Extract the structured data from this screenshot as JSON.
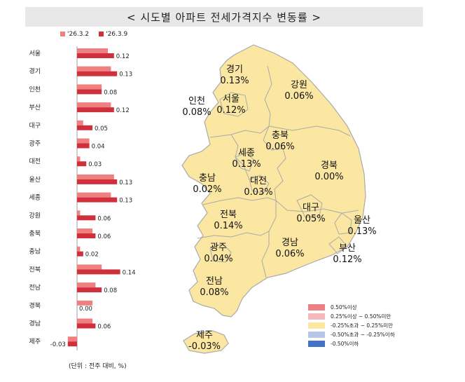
{
  "title": "< 시도별 아파트 전세가격지수 변동률 >",
  "unit_note": "(단위 : 전주 대비, %)",
  "chart_data": {
    "type": "bar",
    "orientation": "horizontal",
    "categories": [
      "서울",
      "경기",
      "인천",
      "부산",
      "대구",
      "광주",
      "대전",
      "울산",
      "세종",
      "강원",
      "충북",
      "충남",
      "전북",
      "전남",
      "경북",
      "경남",
      "제주"
    ],
    "series": [
      {
        "name": "'26.3.2",
        "color": "#f08080",
        "values": [
          0.1,
          0.11,
          0.08,
          0.11,
          0.02,
          0.04,
          0.01,
          0.12,
          0.11,
          0.01,
          0.05,
          0.01,
          0.08,
          0.06,
          0.05,
          0.05,
          -0.03
        ]
      },
      {
        "name": "'26.3.9",
        "color": "#d0303c",
        "values": [
          0.12,
          0.13,
          0.08,
          0.12,
          0.05,
          0.04,
          0.03,
          0.13,
          0.13,
          0.06,
          0.06,
          0.02,
          0.14,
          0.08,
          0.0,
          0.06,
          -0.03
        ]
      }
    ],
    "value_labels": [
      "0.12",
      "0.13",
      "0.08",
      "0.12",
      "0.05",
      "0.04",
      "0.03",
      "0.13",
      "0.13",
      "0.06",
      "0.06",
      "0.02",
      "0.14",
      "0.08",
      "0.00",
      "0.06",
      "-0.03"
    ],
    "xlim": [
      -0.05,
      0.16
    ],
    "legend_position": "top"
  },
  "map": {
    "fill": "#fbe6a2",
    "stroke": "#aaaaaa",
    "regions": [
      {
        "name": "경기",
        "value": "0.13%"
      },
      {
        "name": "강원",
        "value": "0.06%"
      },
      {
        "name": "인천",
        "value": "0.08%"
      },
      {
        "name": "서울",
        "value": "0.12%"
      },
      {
        "name": "충북",
        "value": "0.06%"
      },
      {
        "name": "세종",
        "value": "0.13%"
      },
      {
        "name": "경북",
        "value": "0.00%"
      },
      {
        "name": "충남",
        "value": "0.02%"
      },
      {
        "name": "대전",
        "value": "0.03%"
      },
      {
        "name": "대구",
        "value": "0.05%"
      },
      {
        "name": "울산",
        "value": "0.13%"
      },
      {
        "name": "전북",
        "value": "0.14%"
      },
      {
        "name": "경남",
        "value": "0.06%"
      },
      {
        "name": "부산",
        "value": "0.12%"
      },
      {
        "name": "광주",
        "value": "0.04%"
      },
      {
        "name": "전남",
        "value": "0.08%"
      },
      {
        "name": "제주",
        "value": "-0.03%"
      }
    ],
    "legend": [
      {
        "label": "0.50%이상",
        "color": "#ec7f82"
      },
      {
        "label": "0.25%이상 ~ 0.50%미만",
        "color": "#f6b9bb"
      },
      {
        "label": "-0.25%초과 ~ 0.25%미만",
        "color": "#fbe6a2"
      },
      {
        "label": "-0.50%초과 ~ -0.25%이하",
        "color": "#b8c6e6"
      },
      {
        "label": "-0.50%이하",
        "color": "#4472c4"
      }
    ]
  }
}
